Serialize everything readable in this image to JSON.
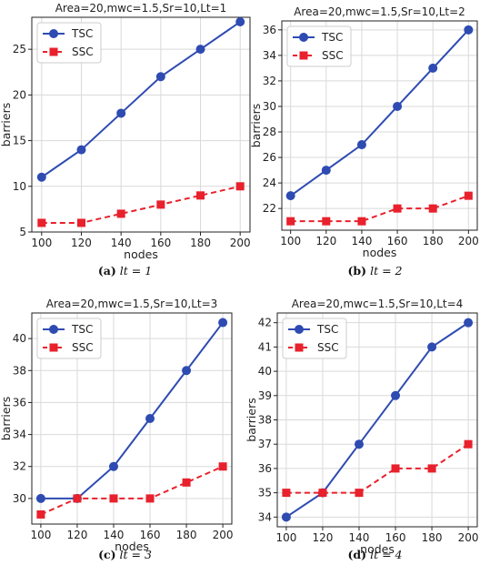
{
  "colors": {
    "tsc": "#2e4bb2",
    "ssc": "#e8212c",
    "grid": "#d9d9d9",
    "axis": "#222222"
  },
  "chart_data": [
    {
      "type": "line",
      "title": "Area=20,mwc=1.5,Sr=10,Lt=1",
      "xlabel": "nodes",
      "ylabel": "barriers",
      "x": [
        100,
        120,
        140,
        160,
        180,
        200
      ],
      "xticks": [
        "100",
        "120",
        "140",
        "160",
        "180",
        "200"
      ],
      "yticks": [
        5,
        10,
        15,
        20,
        25
      ],
      "ylim": [
        5.0,
        28.5
      ],
      "legend": "top-left",
      "series": [
        {
          "name": "TSC",
          "values": [
            11,
            14,
            18,
            22,
            25,
            28
          ]
        },
        {
          "name": "SSC",
          "values": [
            6,
            6,
            7,
            8,
            9,
            10
          ]
        }
      ],
      "caption": {
        "label": "(a)",
        "text": "lt = 1"
      }
    },
    {
      "type": "line",
      "title": "Area=20,mwc=1.5,Sr=10,Lt=2",
      "xlabel": "nodes",
      "ylabel": "barriers",
      "x": [
        100,
        120,
        140,
        160,
        180,
        200
      ],
      "xticks": [
        "100",
        "120",
        "140",
        "160",
        "180",
        "200"
      ],
      "yticks": [
        22,
        24,
        26,
        28,
        30,
        32,
        34,
        36
      ],
      "ylim": [
        20.3,
        36.7
      ],
      "legend": "top-left",
      "series": [
        {
          "name": "TSC",
          "values": [
            23,
            25,
            27,
            30,
            33,
            36
          ]
        },
        {
          "name": "SSC",
          "values": [
            21,
            21,
            21,
            22,
            22,
            23
          ]
        }
      ],
      "caption": {
        "label": "(b)",
        "text": "lt = 2"
      }
    },
    {
      "type": "line",
      "title": "Area=20,mwc=1.5,Sr=10,Lt=3",
      "xlabel": "nodes",
      "ylabel": "barriers",
      "x": [
        100,
        120,
        140,
        160,
        180,
        200
      ],
      "xticks": [
        "100",
        "120",
        "140",
        "160",
        "180",
        "200"
      ],
      "yticks": [
        30,
        32,
        34,
        36,
        38,
        40
      ],
      "ylim": [
        28.4,
        41.6
      ],
      "legend": "top-left",
      "series": [
        {
          "name": "TSC",
          "values": [
            30,
            30,
            32,
            35,
            38,
            41
          ]
        },
        {
          "name": "SSC",
          "values": [
            29,
            30,
            30,
            30,
            31,
            32
          ]
        }
      ],
      "caption": {
        "label": "(c)",
        "text": "lt = 3"
      }
    },
    {
      "type": "line",
      "title": "Area=20,mwc=1.5,Sr=10,Lt=4",
      "xlabel": "nodes",
      "ylabel": "barriers",
      "x": [
        100,
        120,
        140,
        160,
        180,
        200
      ],
      "xticks": [
        "100",
        "120",
        "140",
        "160",
        "180",
        "200"
      ],
      "yticks": [
        34,
        35,
        36,
        37,
        38,
        39,
        40,
        41,
        42
      ],
      "ylim": [
        33.6,
        42.4
      ],
      "legend": "top-left",
      "series": [
        {
          "name": "TSC",
          "values": [
            34,
            35,
            37,
            39,
            41,
            42
          ]
        },
        {
          "name": "SSC",
          "values": [
            35,
            35,
            35,
            36,
            36,
            37
          ]
        }
      ],
      "caption": {
        "label": "(d)",
        "text": "lt = 4"
      }
    }
  ]
}
